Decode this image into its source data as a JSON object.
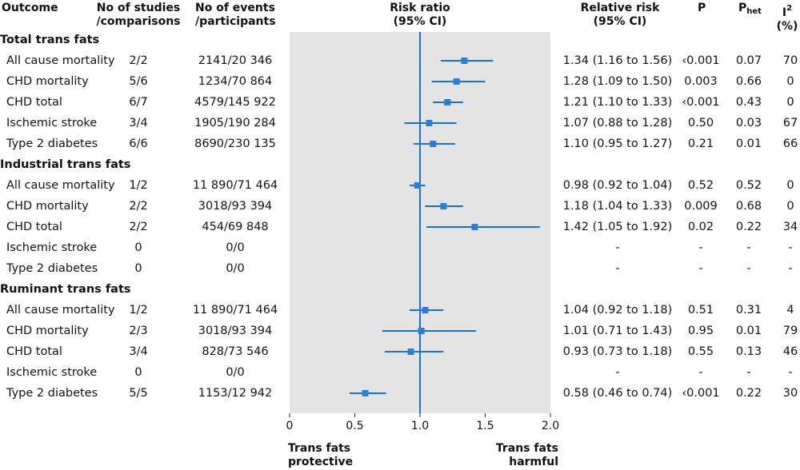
{
  "headers": {
    "outcome": "Outcome",
    "studies": [
      "No of studies",
      "/comparisons"
    ],
    "events": [
      "No of events",
      "/participants"
    ],
    "ratio": [
      "Risk ratio",
      "(95% CI)"
    ],
    "relrisk": [
      "Relative risk",
      "(95% CI)"
    ],
    "p": "P",
    "phet_base": "P",
    "phet_sub": "het",
    "i2_base": "I",
    "i2_sup": "2",
    "i2_unit": "(%)"
  },
  "footer": {
    "protective": [
      "Trans fats",
      "protective"
    ],
    "harmful": [
      "Trans fats",
      "harmful"
    ]
  },
  "chart_data": {
    "type": "forest",
    "xlabel": "Risk ratio (95% CI)",
    "xlim": [
      0,
      2.0
    ],
    "xticks": [
      0,
      0.5,
      1.0,
      1.5,
      2.0
    ],
    "xtick_labels": [
      "0",
      "0.5",
      "1.0",
      "1.5",
      "2.0"
    ],
    "reference_line": 1.0,
    "groups": [
      {
        "name": "Total trans fats",
        "rows": [
          {
            "outcome": "All cause mortality",
            "studies": "2/2",
            "events": "2141/20 346",
            "rr": 1.34,
            "lo": 1.16,
            "hi": 1.56,
            "text": "1.34 (1.16 to 1.56)",
            "p": "‹0.001",
            "phet": "0.07",
            "i2": "70"
          },
          {
            "outcome": "CHD mortality",
            "studies": "5/6",
            "events": "1234/70 864",
            "rr": 1.28,
            "lo": 1.09,
            "hi": 1.5,
            "text": "1.28 (1.09 to 1.50)",
            "p": "0.003",
            "phet": "0.66",
            "i2": "0"
          },
          {
            "outcome": "CHD total",
            "studies": "6/7",
            "events": "4579/145 922",
            "rr": 1.21,
            "lo": 1.1,
            "hi": 1.33,
            "text": "1.21 (1.10 to 1.33)",
            "p": "‹0.001",
            "phet": "0.43",
            "i2": "0"
          },
          {
            "outcome": "Ischemic stroke",
            "studies": "3/4",
            "events": "1905/190 284",
            "rr": 1.07,
            "lo": 0.88,
            "hi": 1.28,
            "text": "1.07 (0.88 to 1.28)",
            "p": "0.50",
            "phet": "0.03",
            "i2": "67"
          },
          {
            "outcome": "Type 2 diabetes",
            "studies": "6/6",
            "events": "8690/230 135",
            "rr": 1.1,
            "lo": 0.95,
            "hi": 1.27,
            "text": "1.10 (0.95 to 1.27)",
            "p": "0.21",
            "phet": "0.01",
            "i2": "66"
          }
        ]
      },
      {
        "name": "Industrial trans fats",
        "rows": [
          {
            "outcome": "All cause mortality",
            "studies": "1/2",
            "events": "11 890/71 464",
            "rr": 0.98,
            "lo": 0.92,
            "hi": 1.04,
            "text": "0.98 (0.92 to 1.04)",
            "p": "0.52",
            "phet": "0.52",
            "i2": "0"
          },
          {
            "outcome": "CHD mortality",
            "studies": "2/2",
            "events": "3018/93 394",
            "rr": 1.18,
            "lo": 1.04,
            "hi": 1.33,
            "text": "1.18 (1.04 to 1.33)",
            "p": "0.009",
            "phet": "0.68",
            "i2": "0"
          },
          {
            "outcome": "CHD total",
            "studies": "2/2",
            "events": "454/69 848",
            "rr": 1.42,
            "lo": 1.05,
            "hi": 1.92,
            "text": "1.42 (1.05 to 1.92)",
            "p": "0.02",
            "phet": "0.22",
            "i2": "34"
          },
          {
            "outcome": "Ischemic stroke",
            "studies": "0",
            "events": "0/0",
            "rr": null,
            "lo": null,
            "hi": null,
            "text": "-",
            "p": "-",
            "phet": "-",
            "i2": "-"
          },
          {
            "outcome": "Type 2 diabetes",
            "studies": "0",
            "events": "0/0",
            "rr": null,
            "lo": null,
            "hi": null,
            "text": "-",
            "p": "-",
            "phet": "-",
            "i2": "-"
          }
        ]
      },
      {
        "name": "Ruminant trans fats",
        "rows": [
          {
            "outcome": "All cause mortality",
            "studies": "1/2",
            "events": "11 890/71 464",
            "rr": 1.04,
            "lo": 0.92,
            "hi": 1.18,
            "text": "1.04 (0.92 to 1.18)",
            "p": "0.51",
            "phet": "0.31",
            "i2": "4"
          },
          {
            "outcome": "CHD mortality",
            "studies": "2/3",
            "events": "3018/93 394",
            "rr": 1.01,
            "lo": 0.71,
            "hi": 1.43,
            "text": "1.01 (0.71 to 1.43)",
            "p": "0.95",
            "phet": "0.01",
            "i2": "79"
          },
          {
            "outcome": "CHD total",
            "studies": "3/4",
            "events": "828/73 546",
            "rr": 0.93,
            "lo": 0.73,
            "hi": 1.18,
            "text": "0.93 (0.73 to 1.18)",
            "p": "0.55",
            "phet": "0.13",
            "i2": "46"
          },
          {
            "outcome": "Ischemic stroke",
            "studies": "0",
            "events": "0/0",
            "rr": null,
            "lo": null,
            "hi": null,
            "text": "-",
            "p": "-",
            "phet": "-",
            "i2": "-"
          },
          {
            "outcome": "Type 2 diabetes",
            "studies": "5/5",
            "events": "1153/12 942",
            "rr": 0.58,
            "lo": 0.46,
            "hi": 0.74,
            "text": "0.58 (0.46 to 0.74)",
            "p": "‹0.001",
            "phet": "0.22",
            "i2": "30"
          }
        ]
      }
    ],
    "colors": {
      "point": "#2a7fd4",
      "line": "#1a73cf",
      "panel": "#e4e4e4"
    }
  }
}
